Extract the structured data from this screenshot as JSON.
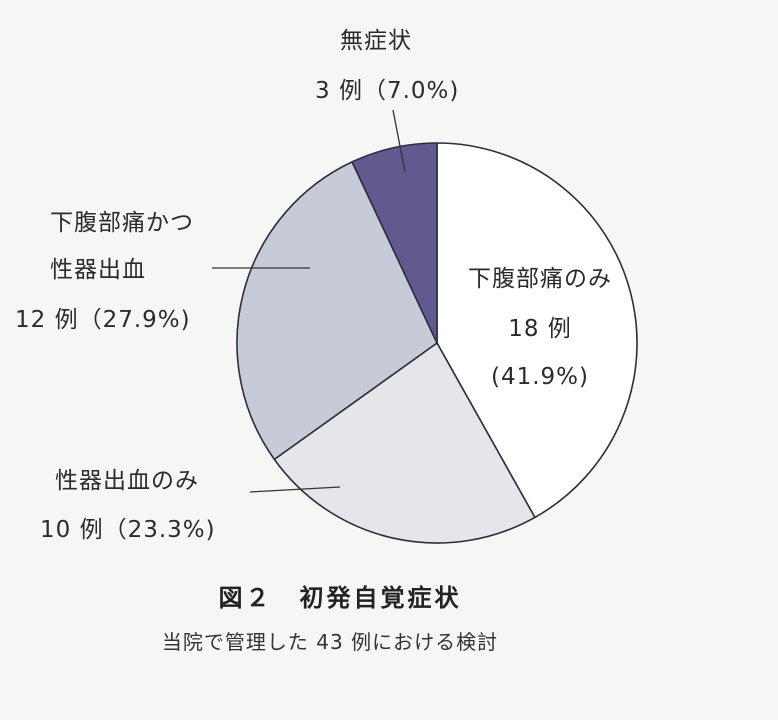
{
  "chart_data": {
    "type": "pie",
    "total": 43,
    "start_angle_deg": 0,
    "direction": "clockwise",
    "slices": [
      {
        "lines": [
          "下腹部痛のみ",
          "18 例",
          "(41.9%)"
        ],
        "count": 18,
        "percent": 41.9,
        "color": "#ffffff"
      },
      {
        "lines": [
          "性器出血のみ",
          "10 例（23.3%)"
        ],
        "count": 10,
        "percent": 23.3,
        "color": "#e5e6ea"
      },
      {
        "lines": [
          "下腹部痛かつ",
          "性器出血",
          "12 例（27.9%)"
        ],
        "count": 12,
        "percent": 27.9,
        "color": "#c7cbd7"
      },
      {
        "lines": [
          "無症状",
          "3 例（7.0%)"
        ],
        "count": 3,
        "percent": 7.0,
        "color": "#605a8e"
      }
    ]
  },
  "caption": {
    "title": "図２　初発自覚症状",
    "subtitle": "当院で管理した 43 例における検討"
  }
}
